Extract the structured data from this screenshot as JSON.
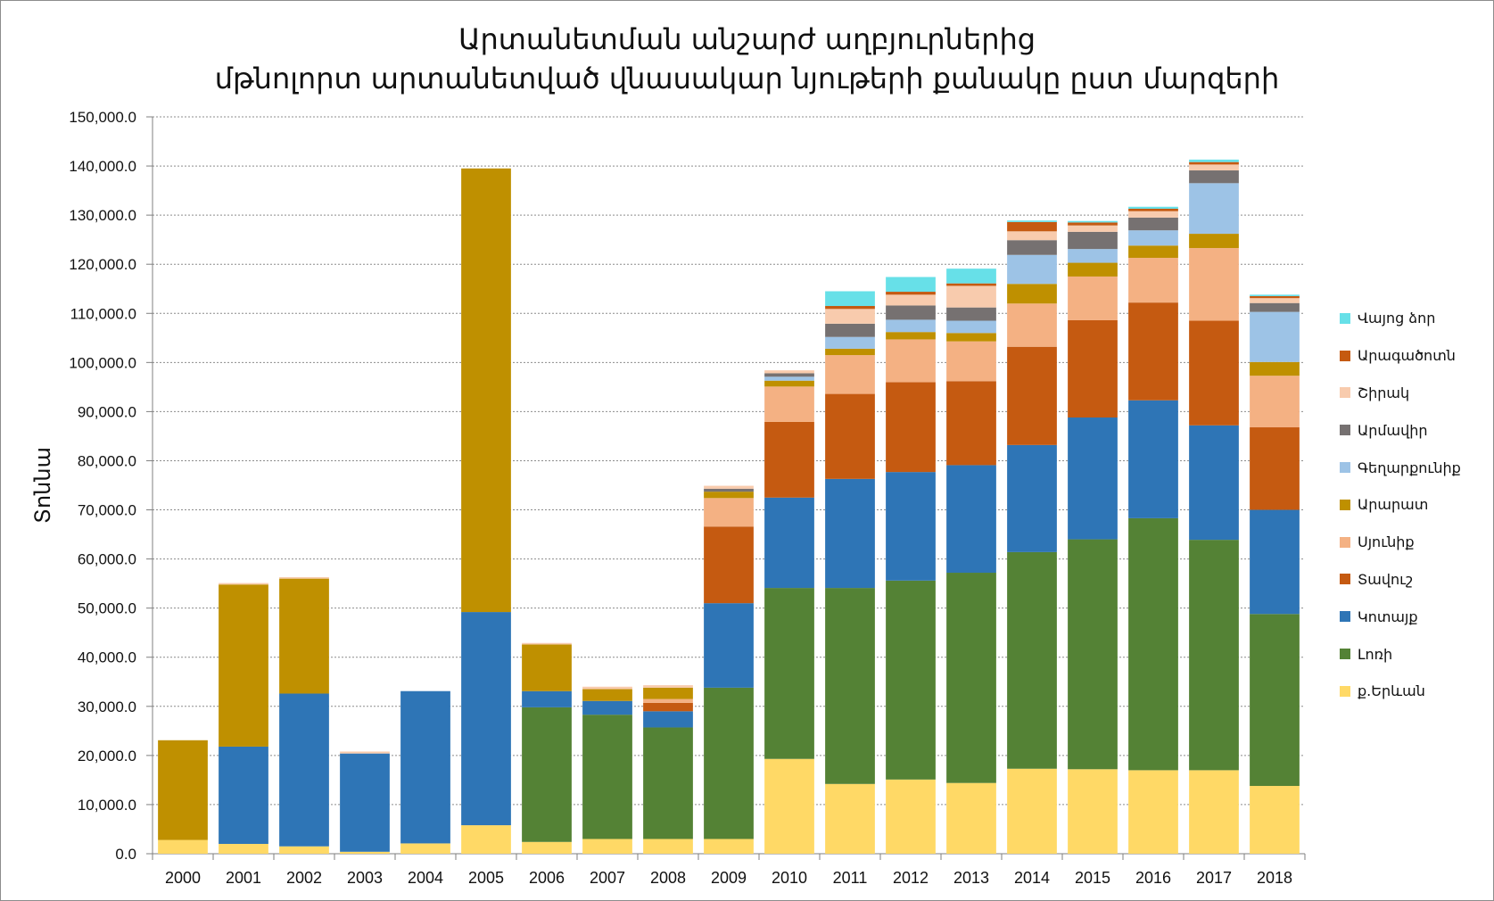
{
  "chart_data": {
    "type": "bar",
    "stacked": true,
    "title": "Արտանետման անշարժ աղբյուրներից\nմթնոլորտ արտանետված վնասակար նյութերի քանակը ըստ մարզերի",
    "title_lines": [
      "Արտանետման անշարժ աղբյուրներից",
      "մթնոլորտ արտանետված վնասակար նյութերի քանակը ըստ մարզերի"
    ],
    "xlabel": "",
    "ylabel": "Տոննա",
    "ylim": [
      0,
      150000
    ],
    "yticks": [
      0,
      10000,
      20000,
      30000,
      40000,
      50000,
      60000,
      70000,
      80000,
      90000,
      100000,
      110000,
      120000,
      130000,
      140000,
      150000
    ],
    "ytick_labels": [
      "0.0",
      "10,000.0",
      "20,000.0",
      "30,000.0",
      "40,000.0",
      "50,000.0",
      "60,000.0",
      "70,000.0",
      "80,000.0",
      "90,000.0",
      "100,000.0",
      "110,000.0",
      "120,000.0",
      "130,000.0",
      "140,000.0",
      "150,000.0"
    ],
    "grid": true,
    "legend_position": "right",
    "categories": [
      "2000",
      "2001",
      "2002",
      "2003",
      "2004",
      "2005",
      "2006",
      "2007",
      "2008",
      "2009",
      "2010",
      "2011",
      "2012",
      "2013",
      "2014",
      "2015",
      "2016",
      "2017",
      "2018"
    ],
    "series": [
      {
        "name": "ք.Երևան",
        "color": "#ffd966",
        "values": [
          2800,
          2000,
          1500,
          400,
          2100,
          5800,
          2400,
          3000,
          3000,
          3000,
          19300,
          14200,
          15100,
          14400,
          17300,
          17200,
          17000,
          17000,
          13800
        ]
      },
      {
        "name": "Լոռի",
        "color": "#548235",
        "values": [
          0,
          0,
          0,
          0,
          0,
          0,
          27400,
          25300,
          22700,
          30800,
          34800,
          39900,
          40500,
          42800,
          44100,
          46800,
          51300,
          46900,
          35000
        ]
      },
      {
        "name": "Կոտայք",
        "color": "#2e75b6",
        "values": [
          0,
          19800,
          31100,
          20000,
          31000,
          43400,
          3300,
          2800,
          3300,
          17200,
          18400,
          22200,
          22100,
          21900,
          21800,
          24800,
          24000,
          23300,
          21200
        ]
      },
      {
        "name": "Տավուշ",
        "color": "#c55a11",
        "values": [
          0,
          0,
          0,
          0,
          0,
          0,
          0,
          0,
          1700,
          15600,
          15400,
          17300,
          18300,
          17100,
          20000,
          19800,
          19900,
          21300,
          16800
        ]
      },
      {
        "name": "Սյունիք",
        "color": "#f4b183",
        "values": [
          0,
          0,
          0,
          0,
          0,
          0,
          0,
          0,
          800,
          5800,
          7200,
          7900,
          8700,
          8100,
          8800,
          8900,
          9100,
          14800,
          10500
        ]
      },
      {
        "name": "Արարատ",
        "color": "#bf9000",
        "values": [
          20300,
          33000,
          23400,
          0,
          0,
          90300,
          9500,
          2400,
          2300,
          1300,
          1200,
          1300,
          1500,
          1700,
          4000,
          2800,
          2500,
          2900,
          2800
        ]
      },
      {
        "name": "Գեղարքունիք",
        "color": "#9dc3e6",
        "values": [
          0,
          0,
          0,
          0,
          0,
          0,
          0,
          0,
          0,
          0,
          800,
          2400,
          2500,
          2500,
          5900,
          2800,
          3100,
          10300,
          10200
        ]
      },
      {
        "name": "Արմավիր",
        "color": "#767171",
        "values": [
          0,
          0,
          0,
          0,
          0,
          0,
          0,
          0,
          0,
          600,
          700,
          2700,
          2900,
          2700,
          3000,
          3500,
          2600,
          2600,
          1800
        ]
      },
      {
        "name": "Շիրակ",
        "color": "#f8cbad",
        "values": [
          0,
          300,
          300,
          400,
          0,
          0,
          300,
          500,
          500,
          600,
          600,
          3000,
          2200,
          4400,
          1800,
          1300,
          1300,
          1200,
          1000
        ]
      },
      {
        "name": "Արագածոտն",
        "color": "#c55a11",
        "values": [
          0,
          0,
          0,
          0,
          0,
          0,
          0,
          0,
          0,
          0,
          0,
          600,
          600,
          500,
          1900,
          600,
          500,
          500,
          400
        ]
      },
      {
        "name": "Վայոց ձոր",
        "color": "#67e0e8",
        "values": [
          0,
          0,
          0,
          0,
          0,
          0,
          0,
          0,
          0,
          0,
          0,
          3000,
          3000,
          3000,
          300,
          300,
          400,
          500,
          300
        ]
      }
    ]
  }
}
